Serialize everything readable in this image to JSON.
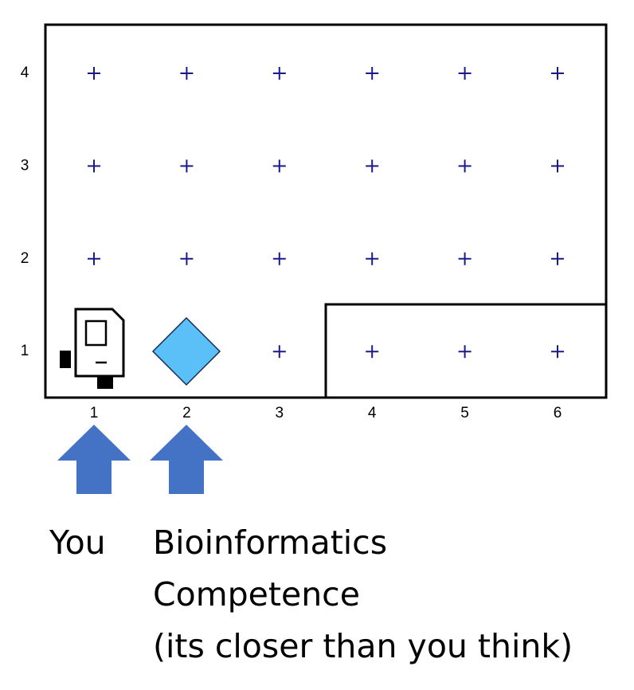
{
  "grid": {
    "columns": [
      "1",
      "2",
      "3",
      "4",
      "5",
      "6"
    ],
    "rows": [
      "4",
      "3",
      "2",
      "1"
    ]
  },
  "captions": {
    "you": "You",
    "target": [
      "Bioinformatics",
      "Competence",
      "(its closer than you think)"
    ]
  }
}
